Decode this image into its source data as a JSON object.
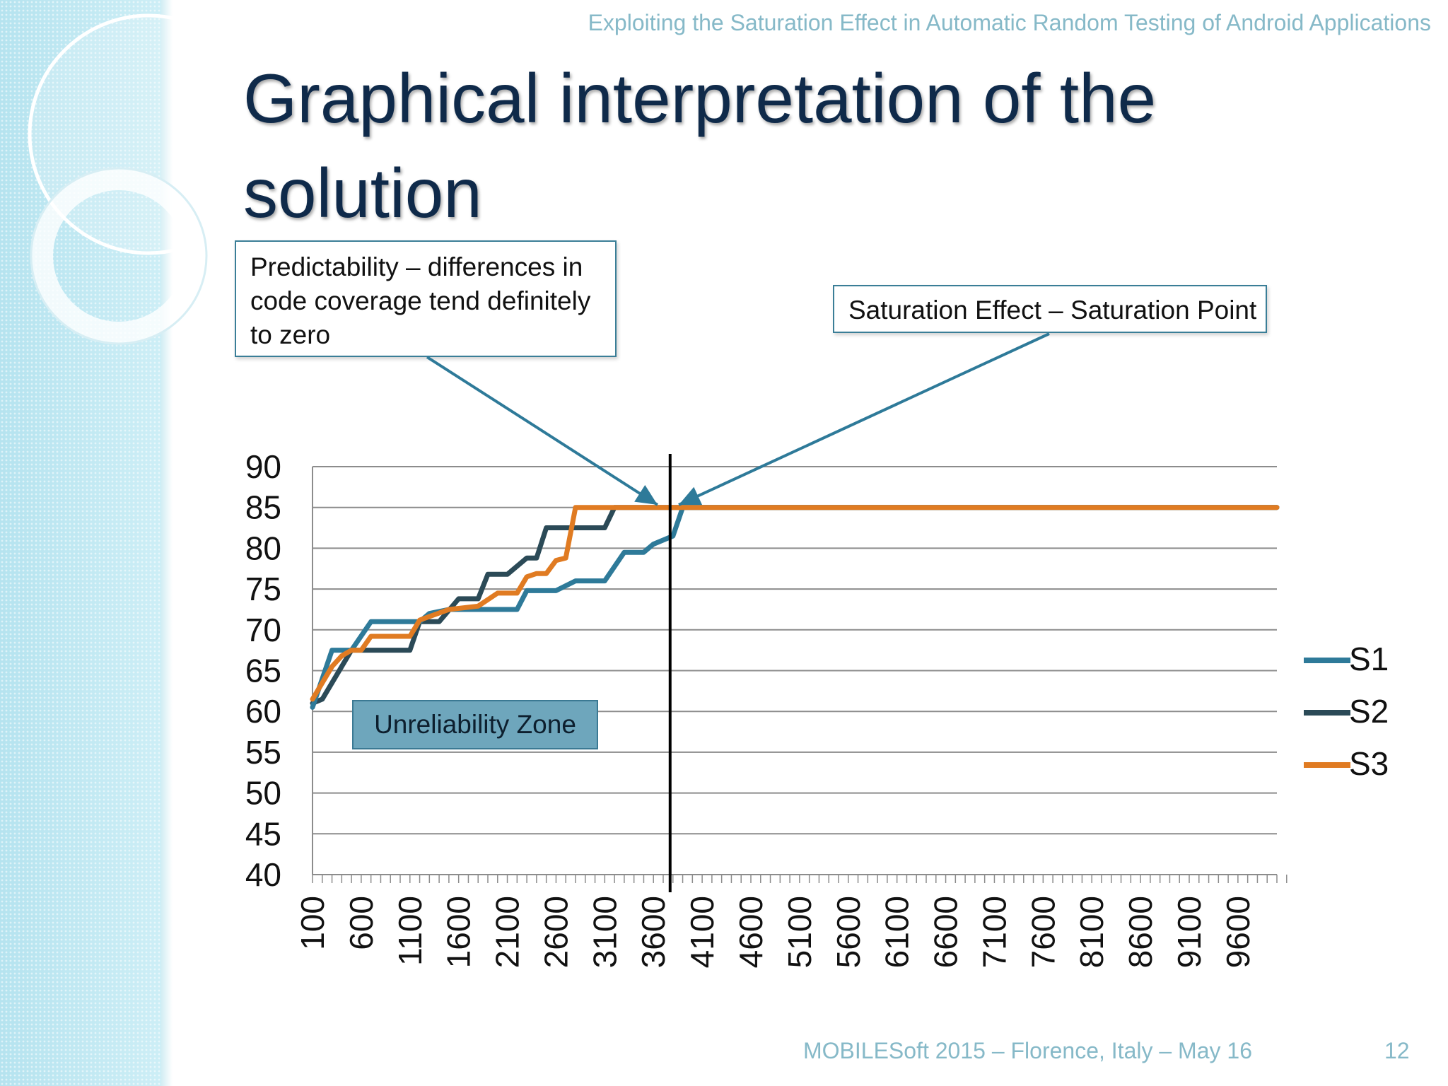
{
  "header": {
    "running_title": "Exploiting the Saturation Effect in Automatic Random Testing of Android Applications"
  },
  "slide": {
    "title": "Graphical interpretation of the solution"
  },
  "callouts": {
    "predictability": "Predictability – differences in code coverage tend definitely to zero",
    "saturation": "Saturation Effect – Saturation Point",
    "unreliability_zone": "Unreliability Zone"
  },
  "footer": {
    "conference": "MOBILESoft 2015 – Florence, Italy – May 16",
    "page_number": "12"
  },
  "colors": {
    "S1": "#2e7a99",
    "S2": "#2b4a57",
    "S3": "#e07b22",
    "marker_line": "#000000",
    "callout_arrow": "#2e7a99",
    "grid": "#8c8c8c"
  },
  "chart_data": {
    "type": "line",
    "title": "",
    "xlabel": "",
    "ylabel": "",
    "x_range": [
      100,
      10000
    ],
    "x_step": 100,
    "x_tick_labels": [
      "100",
      "600",
      "1100",
      "1600",
      "2100",
      "2600",
      "3100",
      "3600",
      "4100",
      "4600",
      "5100",
      "5600",
      "6100",
      "6600",
      "7100",
      "7600",
      "8100",
      "8600",
      "9100",
      "9600"
    ],
    "ylim": [
      40,
      90
    ],
    "y_ticks": [
      40,
      45,
      50,
      55,
      60,
      65,
      70,
      75,
      80,
      85,
      90
    ],
    "grid": true,
    "legend_position": "right",
    "saturation_x": 3800,
    "series": [
      {
        "name": "S1",
        "points": [
          [
            100,
            60.5
          ],
          [
            300,
            67.5
          ],
          [
            500,
            67.5
          ],
          [
            700,
            71
          ],
          [
            1200,
            71
          ],
          [
            1300,
            72
          ],
          [
            1500,
            72.5
          ],
          [
            1800,
            72.5
          ],
          [
            2200,
            72.5
          ],
          [
            2300,
            74.8
          ],
          [
            2600,
            74.8
          ],
          [
            2800,
            76
          ],
          [
            3100,
            76
          ],
          [
            3300,
            79.5
          ],
          [
            3500,
            79.5
          ],
          [
            3600,
            80.5
          ],
          [
            3800,
            81.5
          ],
          [
            3900,
            85
          ],
          [
            10000,
            85
          ]
        ]
      },
      {
        "name": "S2",
        "points": [
          [
            100,
            61
          ],
          [
            200,
            61.5
          ],
          [
            400,
            65.5
          ],
          [
            500,
            67.5
          ],
          [
            1100,
            67.5
          ],
          [
            1200,
            71
          ],
          [
            1400,
            71
          ],
          [
            1600,
            73.8
          ],
          [
            1800,
            73.8
          ],
          [
            1900,
            76.8
          ],
          [
            2100,
            76.8
          ],
          [
            2300,
            78.8
          ],
          [
            2400,
            78.8
          ],
          [
            2500,
            82.5
          ],
          [
            3100,
            82.5
          ],
          [
            3200,
            85
          ],
          [
            10000,
            85
          ]
        ]
      },
      {
        "name": "S3",
        "points": [
          [
            100,
            61.5
          ],
          [
            300,
            65.5
          ],
          [
            400,
            66.8
          ],
          [
            500,
            67.5
          ],
          [
            600,
            67.5
          ],
          [
            700,
            69.2
          ],
          [
            1100,
            69.2
          ],
          [
            1200,
            71.2
          ],
          [
            1500,
            72.5
          ],
          [
            1800,
            72.9
          ],
          [
            2000,
            74.5
          ],
          [
            2200,
            74.5
          ],
          [
            2300,
            76.5
          ],
          [
            2400,
            76.9
          ],
          [
            2500,
            76.9
          ],
          [
            2600,
            78.5
          ],
          [
            2700,
            78.8
          ],
          [
            2800,
            85
          ],
          [
            10000,
            85
          ]
        ]
      }
    ]
  }
}
